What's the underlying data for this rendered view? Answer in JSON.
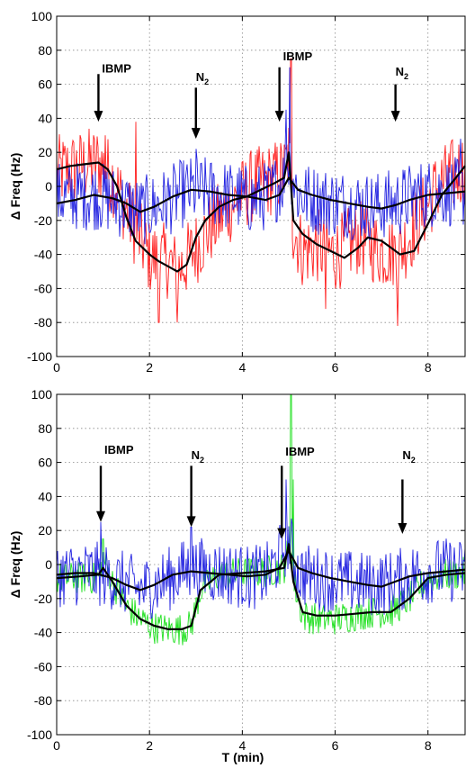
{
  "chart_data": [
    {
      "type": "line",
      "title": "",
      "xlabel": "",
      "ylabel": "Δ Freq (Hz)",
      "xlim": [
        0,
        8.8
      ],
      "ylim": [
        -100,
        100
      ],
      "xticks": [
        "0",
        "2",
        "4",
        "6",
        "8"
      ],
      "yticks": [
        "-100",
        "-80",
        "-60",
        "-40",
        "-20",
        "0",
        "20",
        "40",
        "60",
        "80",
        "100"
      ],
      "grid": true,
      "noise_series": [
        {
          "color": "#ff2020",
          "amplitude": 14,
          "x": [
            0,
            0.9,
            1.2,
            1.6,
            2.0,
            2.4,
            2.6,
            2.9,
            3.3,
            3.8,
            4.2,
            4.6,
            4.9,
            5.0,
            5.1,
            5.3,
            5.6,
            6.0,
            6.5,
            7.0,
            7.4,
            7.8,
            8.2,
            8.8
          ],
          "y": [
            8,
            14,
            5,
            -20,
            -42,
            -44,
            -50,
            -40,
            -25,
            -10,
            0,
            4,
            8,
            20,
            -25,
            -38,
            -35,
            -40,
            -30,
            -38,
            -38,
            -20,
            0,
            12
          ],
          "spikes": [
            {
              "x": 5.05,
              "y": 75
            },
            {
              "x": 1.05,
              "y": 30
            },
            {
              "x": 1.7,
              "y": 38
            },
            {
              "x": 2.6,
              "y": -80
            },
            {
              "x": 7.35,
              "y": -82
            },
            {
              "x": 5.8,
              "y": -72
            },
            {
              "x": 2.2,
              "y": -80
            }
          ]
        },
        {
          "color": "#2020e0",
          "amplitude": 13,
          "x": [
            0,
            0.8,
            1.2,
            1.8,
            2.3,
            2.8,
            3.2,
            3.8,
            4.2,
            4.6,
            4.9,
            5.0,
            5.2,
            5.6,
            6.2,
            6.8,
            7.3,
            7.8,
            8.3,
            8.8
          ],
          "y": [
            -6,
            -5,
            -8,
            -15,
            -10,
            -3,
            -3,
            -6,
            -8,
            -5,
            5,
            15,
            -5,
            -8,
            -10,
            -12,
            -10,
            -5,
            -3,
            -4
          ],
          "spikes": [
            {
              "x": 5.02,
              "y": 70
            },
            {
              "x": 4.95,
              "y": 45
            },
            {
              "x": 3.0,
              "y": 22
            },
            {
              "x": 8.7,
              "y": 28
            }
          ]
        }
      ],
      "series": [
        {
          "color": "#000000",
          "x": [
            0,
            0.3,
            0.6,
            0.9,
            1.1,
            1.3,
            1.5,
            1.7,
            2.0,
            2.2,
            2.4,
            2.6,
            2.8,
            3.0,
            3.2,
            3.5,
            3.8,
            4.1,
            4.4,
            4.7,
            4.9,
            5.0,
            5.1,
            5.3,
            5.6,
            5.9,
            6.2,
            6.5,
            6.7,
            7.0,
            7.2,
            7.4,
            7.7,
            8.0,
            8.3,
            8.6,
            8.8
          ],
          "y": [
            10,
            12,
            13,
            14,
            10,
            0,
            -18,
            -32,
            -40,
            -44,
            -47,
            -50,
            -46,
            -30,
            -20,
            -12,
            -8,
            -6,
            -2,
            2,
            5,
            20,
            -20,
            -28,
            -34,
            -38,
            -42,
            -36,
            -30,
            -32,
            -36,
            -40,
            -38,
            -22,
            -5,
            5,
            12
          ]
        },
        {
          "color": "#000000",
          "x": [
            0,
            0.4,
            0.8,
            1.2,
            1.5,
            1.8,
            2.1,
            2.5,
            2.9,
            3.3,
            3.7,
            4.1,
            4.5,
            4.8,
            5.0,
            5.2,
            5.5,
            5.9,
            6.3,
            6.7,
            7.0,
            7.3,
            7.6,
            8.0,
            8.4,
            8.8
          ],
          "y": [
            -10,
            -8,
            -5,
            -7,
            -10,
            -15,
            -12,
            -6,
            -2,
            -3,
            -5,
            -6,
            -8,
            -5,
            5,
            -2,
            -5,
            -8,
            -10,
            -12,
            -13,
            -11,
            -8,
            -5,
            -4,
            -3
          ]
        }
      ],
      "annotations": [
        {
          "label": "IBMP",
          "sub": "",
          "x": 0.9,
          "y_text": 67,
          "y_from": 66,
          "y_to": 38
        },
        {
          "label": "N",
          "sub": "2",
          "x": 3.0,
          "y_text": 62,
          "y_from": 58,
          "y_to": 28
        },
        {
          "label": "IBMP",
          "sub": "",
          "x": 4.8,
          "y_text": 74,
          "y_from": 70,
          "y_to": 38
        },
        {
          "label": "N",
          "sub": "2",
          "x": 7.3,
          "y_text": 65,
          "y_from": 60,
          "y_to": 38
        }
      ]
    },
    {
      "type": "line",
      "title": "",
      "xlabel": "T (min)",
      "ylabel": "Δ Freq (Hz)",
      "xlim": [
        0,
        8.8
      ],
      "ylim": [
        -100,
        100
      ],
      "xticks": [
        "0",
        "2",
        "4",
        "6",
        "8"
      ],
      "yticks": [
        "-100",
        "-80",
        "-60",
        "-40",
        "-20",
        "0",
        "20",
        "40",
        "60",
        "80",
        "100"
      ],
      "grid": true,
      "noise_series": [
        {
          "color": "#20e020",
          "amplitude": 6,
          "x": [
            0,
            0.9,
            1.0,
            1.2,
            1.5,
            1.8,
            2.1,
            2.4,
            2.7,
            2.9,
            3.1,
            3.5,
            4.0,
            4.5,
            4.9,
            5.0,
            5.1,
            5.3,
            5.6,
            6.0,
            6.4,
            6.8,
            7.2,
            7.6,
            8.0,
            8.4,
            8.8
          ],
          "y": [
            -8,
            -8,
            5,
            -10,
            -25,
            -32,
            -37,
            -38,
            -38,
            -36,
            -15,
            -6,
            -5,
            -4,
            -2,
            10,
            -10,
            -30,
            -32,
            -32,
            -30,
            -28,
            -28,
            -20,
            -8,
            -6,
            -5
          ],
          "spikes": [
            {
              "x": 5.05,
              "y": 100
            },
            {
              "x": 5.1,
              "y": 50
            },
            {
              "x": 1.0,
              "y": 15
            }
          ]
        },
        {
          "color": "#2020e0",
          "amplitude": 12,
          "x": [
            0,
            0.8,
            1.2,
            1.8,
            2.3,
            2.8,
            3.2,
            3.8,
            4.2,
            4.6,
            4.8,
            5.0,
            5.2,
            5.6,
            6.2,
            6.8,
            7.3,
            7.8,
            8.3,
            8.8
          ],
          "y": [
            -6,
            -5,
            -8,
            -15,
            -10,
            -3,
            -3,
            -6,
            -8,
            -5,
            5,
            15,
            -5,
            -8,
            -10,
            -12,
            -10,
            -5,
            -3,
            -4
          ],
          "spikes": [
            {
              "x": 4.95,
              "y": 50
            },
            {
              "x": 0.95,
              "y": 25
            },
            {
              "x": 2.9,
              "y": 22
            }
          ]
        }
      ],
      "series": [
        {
          "color": "#000000",
          "x": [
            0,
            0.5,
            0.9,
            1.0,
            1.2,
            1.5,
            1.8,
            2.1,
            2.4,
            2.7,
            2.9,
            3.1,
            3.5,
            4.0,
            4.5,
            4.9,
            5.0,
            5.1,
            5.3,
            5.6,
            6.0,
            6.4,
            6.8,
            7.2,
            7.6,
            8.0,
            8.4,
            8.8
          ],
          "y": [
            -8,
            -7,
            -6,
            -2,
            -10,
            -24,
            -32,
            -36,
            -38,
            -38,
            -36,
            -15,
            -6,
            -5,
            -4,
            -2,
            12,
            -10,
            -28,
            -30,
            -30,
            -29,
            -28,
            -28,
            -20,
            -8,
            -6,
            -5
          ]
        },
        {
          "color": "#000000",
          "x": [
            0,
            0.4,
            0.8,
            1.2,
            1.5,
            1.8,
            2.1,
            2.5,
            2.9,
            3.3,
            3.7,
            4.1,
            4.5,
            4.8,
            5.0,
            5.2,
            5.5,
            5.9,
            6.3,
            6.7,
            7.0,
            7.3,
            7.6,
            8.0,
            8.4,
            8.8
          ],
          "y": [
            -6,
            -5,
            -5,
            -8,
            -12,
            -15,
            -12,
            -6,
            -4,
            -5,
            -6,
            -7,
            -6,
            -2,
            8,
            -2,
            -5,
            -8,
            -10,
            -12,
            -13,
            -10,
            -7,
            -5,
            -4,
            -3
          ]
        }
      ],
      "annotations": [
        {
          "label": "IBMP",
          "sub": "",
          "x": 0.95,
          "y_text": 65,
          "y_from": 58,
          "y_to": 25
        },
        {
          "label": "N",
          "sub": "2",
          "x": 2.9,
          "y_text": 62,
          "y_from": 58,
          "y_to": 22
        },
        {
          "label": "IBMP",
          "sub": "",
          "x": 4.85,
          "y_text": 64,
          "y_from": 58,
          "y_to": 15
        },
        {
          "label": "N",
          "sub": "2",
          "x": 7.45,
          "y_text": 62,
          "y_from": 50,
          "y_to": 18
        }
      ]
    }
  ]
}
